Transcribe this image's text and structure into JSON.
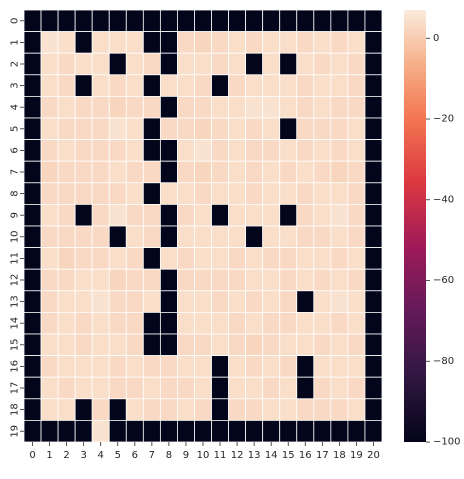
{
  "chart_data": {
    "type": "heatmap",
    "title": "",
    "xlabel": "",
    "ylabel": "",
    "x_labels": [
      "0",
      "1",
      "2",
      "3",
      "4",
      "5",
      "6",
      "7",
      "8",
      "9",
      "10",
      "11",
      "12",
      "13",
      "14",
      "15",
      "16",
      "17",
      "18",
      "19",
      "20"
    ],
    "y_labels": [
      "0",
      "1",
      "2",
      "3",
      "4",
      "5",
      "6",
      "7",
      "8",
      "9",
      "10",
      "11",
      "12",
      "13",
      "14",
      "15",
      "16",
      "17",
      "18",
      "19"
    ],
    "colorbar": {
      "min": -100,
      "max": 7,
      "ticks": [
        0,
        -20,
        -40,
        -60,
        -80,
        -100
      ],
      "colormap": "rocket"
    },
    "grid_lines_color": "#ffffff",
    "values": [
      [
        -100,
        -100,
        -100,
        -100,
        -100,
        -100,
        -100,
        -100,
        -100,
        -100,
        -100,
        -100,
        -100,
        -100,
        -100,
        -100,
        -100,
        -100,
        -100,
        -100,
        -100
      ],
      [
        -100,
        5,
        4,
        -100,
        4,
        4,
        4,
        -100,
        -100,
        3,
        2,
        3,
        4,
        3,
        4,
        4,
        3,
        4,
        3,
        4,
        -100
      ],
      [
        -100,
        4,
        3,
        4,
        4,
        -100,
        4,
        3,
        -100,
        4,
        4,
        3,
        4,
        -100,
        4,
        -100,
        4,
        3,
        4,
        3,
        -100
      ],
      [
        -100,
        4,
        3,
        -100,
        4,
        3,
        4,
        -100,
        4,
        4,
        3,
        -100,
        3,
        4,
        4,
        4,
        3,
        4,
        4,
        3,
        -100
      ],
      [
        -100,
        3,
        4,
        3,
        3,
        2,
        3,
        3,
        -100,
        3,
        3,
        4,
        4,
        5,
        5,
        4,
        3,
        4,
        3,
        3,
        -100
      ],
      [
        -100,
        4,
        3,
        3,
        3,
        5,
        4,
        -100,
        3,
        3,
        2,
        3,
        4,
        3,
        4,
        -100,
        3,
        3,
        3,
        4,
        -100
      ],
      [
        -100,
        3,
        4,
        3,
        3,
        3,
        4,
        -100,
        -100,
        4,
        5,
        3,
        4,
        3,
        3,
        4,
        3,
        4,
        3,
        4,
        -100
      ],
      [
        -100,
        2,
        3,
        3,
        3,
        4,
        3,
        3,
        -100,
        3,
        2,
        3,
        4,
        3,
        4,
        3,
        4,
        3,
        2,
        3,
        -100
      ],
      [
        -100,
        3,
        3,
        3,
        3,
        3,
        4,
        -100,
        4,
        4,
        3,
        4,
        4,
        3,
        4,
        4,
        3,
        4,
        4,
        3,
        -100
      ],
      [
        -100,
        4,
        3,
        -100,
        3,
        5,
        3,
        3,
        -100,
        3,
        4,
        -100,
        4,
        4,
        4,
        -100,
        3,
        4,
        5,
        3,
        -100
      ],
      [
        -100,
        3,
        3,
        3,
        3,
        -100,
        4,
        3,
        -100,
        4,
        4,
        4,
        4,
        -100,
        4,
        4,
        3,
        3,
        4,
        3,
        -100
      ],
      [
        -100,
        4,
        2,
        3,
        3,
        4,
        3,
        -100,
        4,
        3,
        4,
        4,
        3,
        4,
        3,
        3,
        4,
        4,
        3,
        4,
        -100
      ],
      [
        -100,
        3,
        3,
        4,
        4,
        2,
        3,
        3,
        -100,
        3,
        3,
        3,
        3,
        4,
        4,
        3,
        4,
        3,
        4,
        3,
        -100
      ],
      [
        -100,
        3,
        4,
        4,
        5,
        3,
        3,
        4,
        -100,
        4,
        4,
        3,
        4,
        3,
        4,
        3,
        -100,
        4,
        5,
        4,
        -100
      ],
      [
        -100,
        3,
        4,
        3,
        4,
        3,
        3,
        -100,
        -100,
        4,
        4,
        4,
        3,
        4,
        3,
        3,
        4,
        4,
        3,
        4,
        -100
      ],
      [
        -100,
        4,
        4,
        3,
        4,
        4,
        3,
        -100,
        -100,
        3,
        3,
        4,
        3,
        2,
        3,
        4,
        4,
        3,
        4,
        3,
        -100
      ],
      [
        -100,
        3,
        4,
        4,
        4,
        3,
        4,
        3,
        3,
        4,
        4,
        -100,
        4,
        3,
        4,
        3,
        -100,
        4,
        4,
        4,
        -100
      ],
      [
        -100,
        4,
        3,
        4,
        4,
        3,
        3,
        4,
        3,
        3,
        4,
        -100,
        4,
        4,
        3,
        4,
        -100,
        3,
        4,
        3,
        -100
      ],
      [
        -100,
        4,
        4,
        -100,
        3,
        -100,
        4,
        3,
        3,
        4,
        3,
        -100,
        3,
        3,
        4,
        4,
        3,
        3,
        3,
        4,
        -100
      ],
      [
        -100,
        -100,
        -100,
        -100,
        5,
        -100,
        -100,
        -100,
        -100,
        -100,
        -100,
        -100,
        -100,
        -100,
        -100,
        -100,
        -100,
        -100,
        -100,
        -100,
        -100
      ]
    ]
  }
}
